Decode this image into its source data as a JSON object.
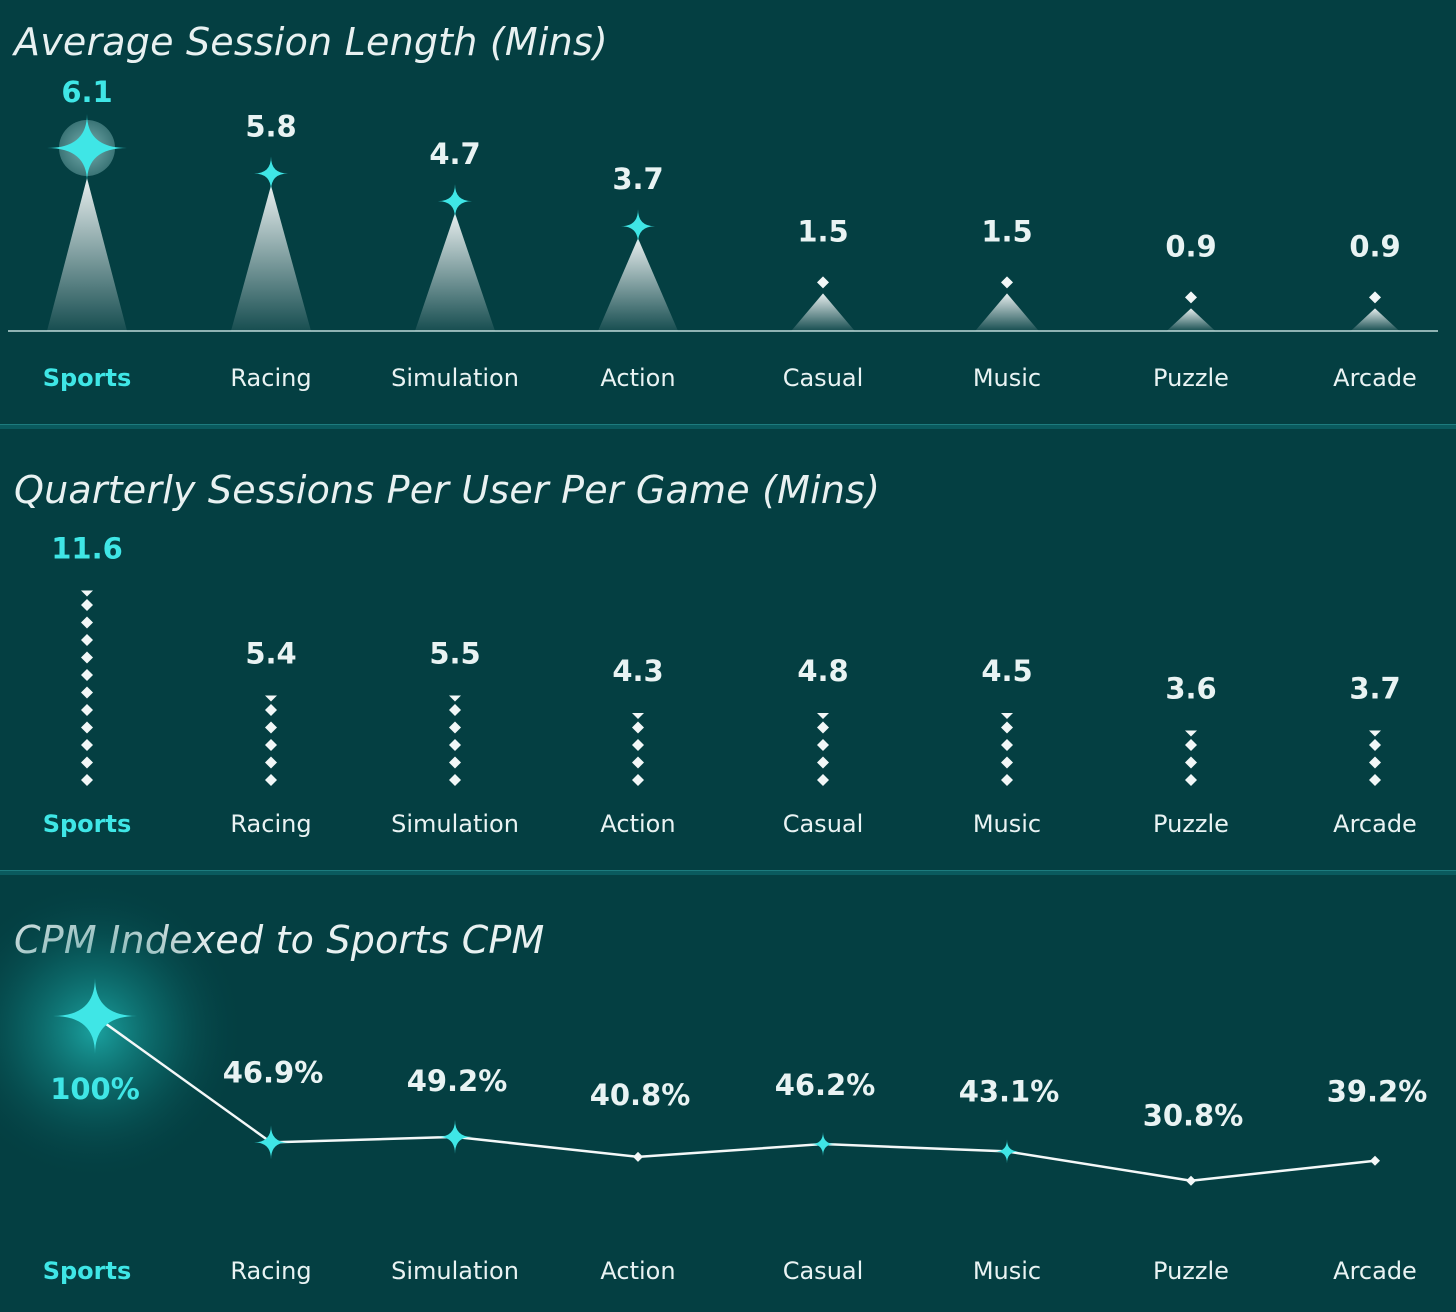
{
  "colors": {
    "background": "#043f42",
    "highlight": "#3fe6e6",
    "text": "#e9f3f3",
    "baseline": "#8fb3b3"
  },
  "chart_data": [
    {
      "type": "bar",
      "title": "Average Session Length (Mins)",
      "categories": [
        "Sports",
        "Racing",
        "Simulation",
        "Action",
        "Casual",
        "Music",
        "Puzzle",
        "Arcade"
      ],
      "values": [
        6.1,
        5.8,
        4.7,
        3.7,
        1.5,
        1.5,
        0.9,
        0.9
      ],
      "value_labels": [
        "6.1",
        "5.8",
        "4.7",
        "3.7",
        "1.5",
        "1.5",
        "0.9",
        "0.9"
      ],
      "highlight": "Sports",
      "grid": false
    },
    {
      "type": "bar",
      "title": "Quarterly Sessions Per User Per Game (Mins)",
      "categories": [
        "Sports",
        "Racing",
        "Simulation",
        "Action",
        "Casual",
        "Music",
        "Puzzle",
        "Arcade"
      ],
      "values": [
        11.6,
        5.4,
        5.5,
        4.3,
        4.8,
        4.5,
        3.6,
        3.7
      ],
      "value_labels": [
        "11.6",
        "5.4",
        "5.5",
        "4.3",
        "4.8",
        "4.5",
        "3.6",
        "3.7"
      ],
      "highlight": "Sports",
      "grid": false
    },
    {
      "type": "line",
      "title": "CPM Indexed to Sports CPM",
      "categories": [
        "Sports",
        "Racing",
        "Simulation",
        "Action",
        "Casual",
        "Music",
        "Puzzle",
        "Arcade"
      ],
      "values": [
        100,
        46.9,
        49.2,
        40.8,
        46.2,
        43.1,
        30.8,
        39.2
      ],
      "value_labels": [
        "100%",
        "46.9%",
        "49.2%",
        "40.8%",
        "46.2%",
        "43.1%",
        "30.8%",
        "39.2%"
      ],
      "highlight": "Sports",
      "grid": false
    }
  ]
}
